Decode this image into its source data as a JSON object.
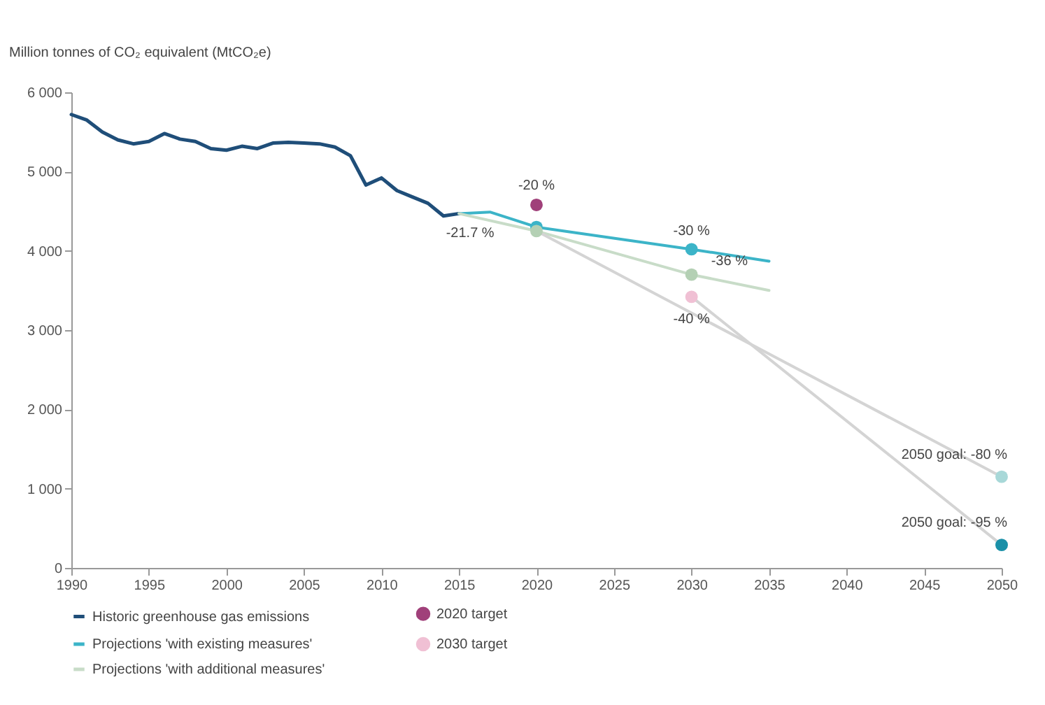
{
  "chart_data": {
    "type": "line",
    "ylabel": "Million tonnes of CO₂ equivalent (MtCO₂e)",
    "xlim": [
      1990,
      2050
    ],
    "xticks": [
      1990,
      1995,
      2000,
      2005,
      2010,
      2015,
      2020,
      2025,
      2030,
      2035,
      2040,
      2045,
      2050
    ],
    "ylim": [
      0,
      6000
    ],
    "yticks": [
      0,
      {
        "value": 1000,
        "label": "1 000"
      },
      {
        "value": 2000,
        "label": "2 000"
      },
      {
        "value": 3000,
        "label": "3 000"
      },
      {
        "value": 4000,
        "label": "4 000"
      },
      {
        "value": 5000,
        "label": "5 000"
      },
      {
        "value": 6000,
        "label": "6 000"
      }
    ],
    "grid": false,
    "legend": "bottom",
    "series": [
      {
        "name": "Historic greenhouse gas emissions",
        "color": "#1f4e79",
        "x": [
          1990,
          1991,
          1992,
          1993,
          1994,
          1995,
          1996,
          1997,
          1998,
          1999,
          2000,
          2001,
          2002,
          2003,
          2004,
          2005,
          2006,
          2007,
          2008,
          2009,
          2010,
          2011,
          2012,
          2013,
          2014,
          2015
        ],
        "values": [
          5720,
          5650,
          5500,
          5400,
          5350,
          5380,
          5480,
          5410,
          5380,
          5290,
          5270,
          5320,
          5290,
          5360,
          5370,
          5360,
          5350,
          5310,
          5200,
          4830,
          4920,
          4760,
          4680,
          4600,
          4440,
          4470
        ]
      },
      {
        "name": "2020 target",
        "type": "scatter",
        "color": "#a0407a",
        "x": [
          2020
        ],
        "values": [
          4580
        ]
      },
      {
        "name": "Projections 'with existing measures'",
        "color": "#3cb4c8",
        "x": [
          2015,
          2017,
          2020,
          2030,
          2035
        ],
        "values": [
          4470,
          4490,
          4300,
          4020,
          3870
        ]
      },
      {
        "name": "2030 target",
        "type": "scatter",
        "color": "#f0c0d4",
        "x": [
          2030
        ],
        "values": [
          3420
        ]
      },
      {
        "name": "Projections 'with additional measures'",
        "color": "#c8dcc8",
        "x": [
          2015,
          2020,
          2030,
          2035
        ],
        "values": [
          4470,
          4250,
          3700,
          3500
        ]
      },
      {
        "color": "#d4d4d4",
        "x": [
          2020,
          2050
        ],
        "values": [
          4250,
          1150
        ]
      },
      {
        "color": "#d4d4d4",
        "x": [
          2030,
          2050
        ],
        "values": [
          3420,
          290
        ]
      },
      {
        "type": "scatter",
        "color": "#3cb4c8",
        "x": [
          2020,
          2030
        ],
        "values": [
          4300,
          4020
        ]
      },
      {
        "type": "scatter",
        "color": "#b4d0b4",
        "x": [
          2020,
          2030
        ],
        "values": [
          4250,
          3700
        ]
      },
      {
        "type": "scatter",
        "color": "#a8d8d8",
        "x": [
          2050
        ],
        "values": [
          1150
        ]
      },
      {
        "type": "scatter",
        "color": "#1a90a8",
        "x": [
          2050
        ],
        "values": [
          290
        ]
      }
    ],
    "annotations": [
      {
        "text": "-21.7 %",
        "x": 2015,
        "y": 4470
      },
      {
        "text": "-20 %",
        "x": 2020,
        "y": 4580
      },
      {
        "text": "-30 %",
        "x": 2030,
        "y": 4020
      },
      {
        "text": "-36 %",
        "x": 2030,
        "y": 3700
      },
      {
        "text": "-40 %",
        "x": 2030,
        "y": 3420
      },
      {
        "text": "2050 goal: -80 %",
        "x": 2050,
        "y": 1150
      },
      {
        "text": "2050 goal: -95 %",
        "x": 2050,
        "y": 290
      }
    ]
  }
}
